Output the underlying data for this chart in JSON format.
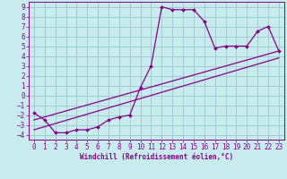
{
  "xlabel": "Windchill (Refroidissement éolien,°C)",
  "bg_color": "#c8ecee",
  "line_color": "#880088",
  "grid_color": "#98c8cc",
  "xlim": [
    -0.5,
    23.5
  ],
  "ylim": [
    -4.5,
    9.5
  ],
  "xticks": [
    0,
    1,
    2,
    3,
    4,
    5,
    6,
    7,
    8,
    9,
    10,
    11,
    12,
    13,
    14,
    15,
    16,
    17,
    18,
    19,
    20,
    21,
    22,
    23
  ],
  "yticks": [
    -4,
    -3,
    -2,
    -1,
    0,
    1,
    2,
    3,
    4,
    5,
    6,
    7,
    8,
    9
  ],
  "line1_x": [
    0,
    1,
    2,
    3,
    4,
    5,
    6,
    7,
    8,
    9,
    10,
    11,
    12,
    13,
    14,
    15,
    16,
    17,
    18,
    19,
    20,
    21,
    22,
    23
  ],
  "line1_y": [
    -1.8,
    -2.5,
    -3.8,
    -3.8,
    -3.5,
    -3.5,
    -3.2,
    -2.5,
    -2.2,
    -2.0,
    0.8,
    3.0,
    9.0,
    8.7,
    8.7,
    8.7,
    7.5,
    4.8,
    5.0,
    5.0,
    5.0,
    6.5,
    7.0,
    4.5
  ],
  "line2_x": [
    0,
    23
  ],
  "line2_y": [
    -2.5,
    4.5
  ],
  "line3_x": [
    0,
    23
  ],
  "line3_y": [
    -3.5,
    3.8
  ],
  "tick_fontsize": 5.5,
  "xlabel_fontsize": 5.5
}
